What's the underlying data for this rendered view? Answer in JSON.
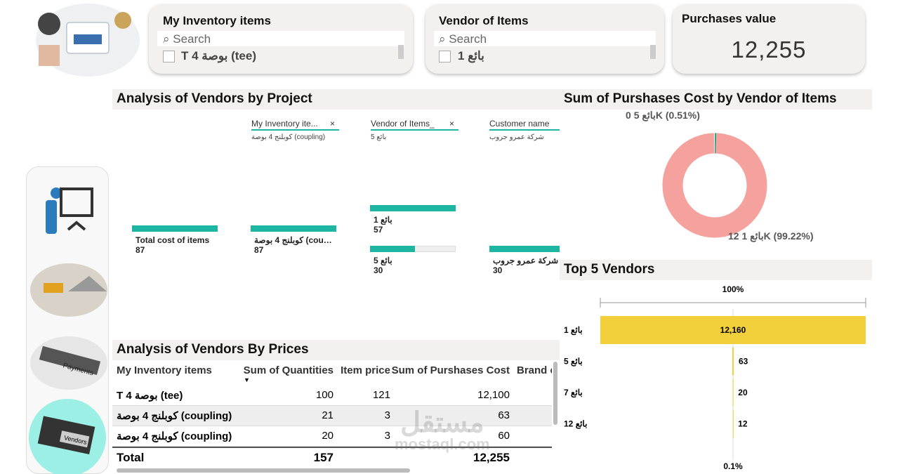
{
  "slicers": [
    {
      "title": "My Inventory items",
      "search": "Search",
      "item": "T 4 بوصة (tee)"
    },
    {
      "title": "Vendor of Items",
      "search": "Search",
      "item": "بائع 1"
    }
  ],
  "card": {
    "title": "Purchases value",
    "value": "12,255"
  },
  "tree": {
    "title": "Analysis of Vendors by Project",
    "filters": [
      {
        "label": "My Inventory ite...",
        "value": "كوبلنج 4 بوصة (coupling)"
      },
      {
        "label": "Vendor of Items_",
        "value": "بائع 5"
      },
      {
        "label": "Customer name",
        "value": "شركة عمرو جروب"
      }
    ],
    "nodes": [
      {
        "label": "Total cost of items",
        "value": 87
      },
      {
        "label": "كوبلنج 4 بوصة (coupling)",
        "value": 87
      },
      {
        "label": "بائع 1",
        "value": 57
      },
      {
        "label": "بائع 5",
        "value": 30
      },
      {
        "label": "شركة عمرو جروب",
        "value": 30
      }
    ]
  },
  "chart_data": [
    {
      "type": "donut",
      "title": "Sum of Purshases Cost by Vendor of Items",
      "categories": [
        "بائع 5",
        "بائع 1"
      ],
      "values": [
        0.51,
        99.22
      ],
      "value_labels": [
        "0K (0.51%)",
        "12K (99.22%)"
      ],
      "colors": [
        "#2aa784",
        "#f5a19d"
      ]
    },
    {
      "type": "funnel",
      "title": "Top 5 Vendors",
      "top_label": "100%",
      "bottom_label": "0.1%",
      "categories": [
        "بائع 1",
        "بائع 5",
        "بائع 7",
        "بائع 12"
      ],
      "values": [
        12160,
        63,
        20,
        12
      ],
      "value_labels": [
        "12,160",
        "63",
        "20",
        "12"
      ],
      "color": "#f2d03b"
    }
  ],
  "table": {
    "title": "Analysis of Vendors By Prices",
    "columns": [
      "My Inventory items",
      "Sum of Quantities",
      "Item price",
      "Sum of Purshases Cost",
      "Brand c"
    ],
    "rows": [
      [
        "T 4 بوصة (tee)",
        100,
        121,
        "12,100"
      ],
      [
        "كوبلنج 4 بوصة (coupling)",
        21,
        3,
        63
      ],
      [
        "كوبلنج 4 بوصة (coupling)",
        20,
        3,
        60
      ]
    ],
    "total": {
      "label": "Total",
      "quantity": 157,
      "cost": "12,255"
    }
  },
  "watermark": [
    "مستقل",
    "mostaql.com"
  ]
}
